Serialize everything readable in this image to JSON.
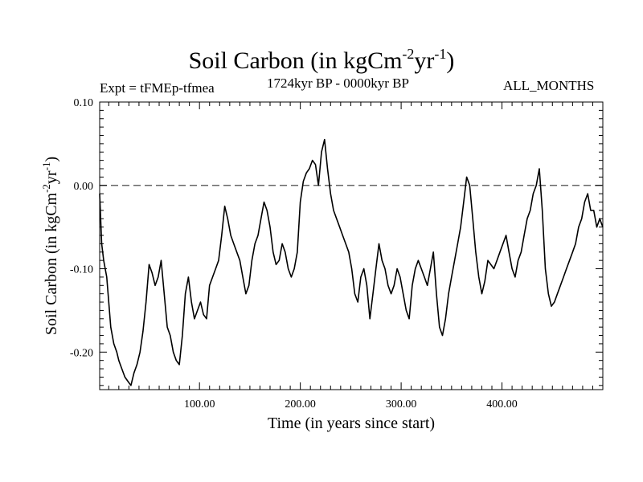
{
  "chart_data": {
    "type": "line",
    "title": {
      "base": "Soil Carbon (in kgCm",
      "exp1": "-2",
      "mid": "yr",
      "exp2": "-1",
      "end": ")"
    },
    "subtitle_left": "Expt = tFMEp-tfmea",
    "subtitle_center": "1724kyr BP - 0000kyr BP",
    "subtitle_right": "ALL_MONTHS",
    "xlabel": "Time (in years since start)",
    "ylabel": {
      "base": "Soil Carbon (in kgCm",
      "exp1": "-2",
      "mid": "yr",
      "exp2": "-1",
      "end": ")"
    },
    "xlim": [
      1,
      500
    ],
    "ylim": [
      -0.245,
      0.1
    ],
    "x_ticks": [
      100,
      200,
      300,
      400
    ],
    "x_tick_labels": [
      "100.00",
      "200.00",
      "300.00",
      "400.00"
    ],
    "y_ticks": [
      0.1,
      0.0,
      -0.1,
      -0.2
    ],
    "y_tick_labels": [
      "0.10",
      "0.00",
      "-0.10",
      "-0.20"
    ],
    "reference_line": 0.0,
    "series": [
      {
        "name": "Soil Carbon",
        "x": [
          1,
          3,
          5,
          8,
          10,
          12,
          15,
          18,
          20,
          23,
          26,
          29,
          32,
          35,
          38,
          41,
          44,
          47,
          50,
          53,
          56,
          59,
          62,
          65,
          68,
          71,
          74,
          77,
          80,
          83,
          86,
          89,
          92,
          95,
          98,
          101,
          104,
          107,
          110,
          113,
          116,
          119,
          122,
          125,
          128,
          131,
          134,
          137,
          140,
          143,
          146,
          149,
          152,
          155,
          158,
          161,
          164,
          167,
          170,
          173,
          176,
          179,
          182,
          185,
          188,
          191,
          194,
          197,
          200,
          203,
          206,
          209,
          212,
          215,
          218,
          221,
          224,
          227,
          230,
          233,
          236,
          239,
          242,
          245,
          248,
          251,
          254,
          257,
          260,
          263,
          266,
          269,
          272,
          275,
          278,
          281,
          284,
          287,
          290,
          293,
          296,
          299,
          302,
          305,
          308,
          311,
          314,
          317,
          320,
          323,
          326,
          329,
          332,
          335,
          338,
          341,
          344,
          347,
          350,
          353,
          356,
          359,
          362,
          365,
          368,
          371,
          374,
          377,
          380,
          383,
          386,
          389,
          392,
          395,
          398,
          401,
          404,
          407,
          410,
          413,
          416,
          419,
          422,
          425,
          428,
          431,
          434,
          437,
          440,
          443,
          446,
          449,
          452,
          455,
          458,
          461,
          464,
          467,
          470,
          473,
          476,
          479,
          482,
          485,
          488,
          491,
          494,
          497,
          500
        ],
        "values": [
          -0.01,
          -0.07,
          -0.09,
          -0.11,
          -0.14,
          -0.17,
          -0.19,
          -0.2,
          -0.21,
          -0.22,
          -0.23,
          -0.235,
          -0.24,
          -0.225,
          -0.215,
          -0.2,
          -0.175,
          -0.14,
          -0.095,
          -0.105,
          -0.12,
          -0.11,
          -0.09,
          -0.13,
          -0.17,
          -0.18,
          -0.2,
          -0.21,
          -0.215,
          -0.18,
          -0.13,
          -0.11,
          -0.14,
          -0.16,
          -0.15,
          -0.14,
          -0.155,
          -0.16,
          -0.12,
          -0.11,
          -0.1,
          -0.09,
          -0.06,
          -0.025,
          -0.04,
          -0.06,
          -0.07,
          -0.08,
          -0.09,
          -0.11,
          -0.13,
          -0.12,
          -0.09,
          -0.07,
          -0.06,
          -0.04,
          -0.02,
          -0.03,
          -0.05,
          -0.08,
          -0.095,
          -0.09,
          -0.07,
          -0.08,
          -0.1,
          -0.11,
          -0.1,
          -0.08,
          -0.02,
          0.005,
          0.015,
          0.02,
          0.03,
          0.025,
          0.0,
          0.04,
          0.055,
          0.02,
          -0.01,
          -0.03,
          -0.04,
          -0.05,
          -0.06,
          -0.07,
          -0.08,
          -0.1,
          -0.13,
          -0.14,
          -0.11,
          -0.1,
          -0.12,
          -0.16,
          -0.13,
          -0.1,
          -0.07,
          -0.09,
          -0.1,
          -0.12,
          -0.13,
          -0.12,
          -0.1,
          -0.11,
          -0.13,
          -0.15,
          -0.16,
          -0.12,
          -0.1,
          -0.09,
          -0.1,
          -0.11,
          -0.12,
          -0.1,
          -0.08,
          -0.13,
          -0.17,
          -0.18,
          -0.16,
          -0.13,
          -0.11,
          -0.09,
          -0.07,
          -0.05,
          -0.02,
          0.01,
          0.0,
          -0.04,
          -0.08,
          -0.11,
          -0.13,
          -0.115,
          -0.09,
          -0.095,
          -0.1,
          -0.09,
          -0.08,
          -0.07,
          -0.06,
          -0.08,
          -0.1,
          -0.11,
          -0.09,
          -0.08,
          -0.06,
          -0.04,
          -0.03,
          -0.01,
          0.0,
          0.02,
          -0.03,
          -0.1,
          -0.13,
          -0.145,
          -0.14,
          -0.13,
          -0.12,
          -0.11,
          -0.1,
          -0.09,
          -0.08,
          -0.07,
          -0.05,
          -0.04,
          -0.02,
          -0.01,
          -0.03,
          -0.03,
          -0.05,
          -0.04,
          -0.05
        ]
      }
    ]
  }
}
